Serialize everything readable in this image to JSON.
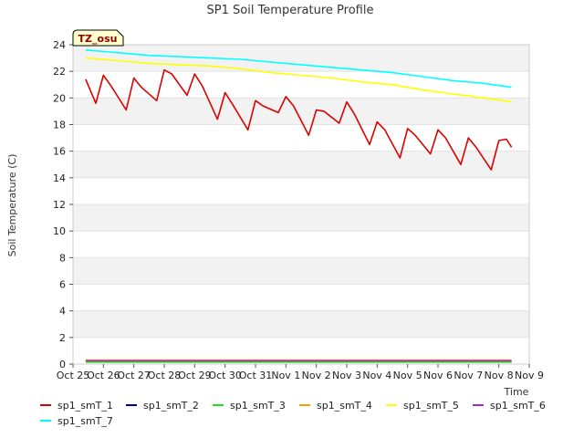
{
  "chart_data": {
    "type": "line",
    "title": "SP1 Soil Temperature Profile",
    "xlabel": "Time",
    "ylabel": "Soil Temperature (C)",
    "badge": "TZ_osu",
    "ylim": [
      0,
      24
    ],
    "yticks": [
      0,
      2,
      4,
      6,
      8,
      10,
      12,
      14,
      16,
      18,
      20,
      22,
      24
    ],
    "xlim": [
      "Oct 25",
      "Nov 9"
    ],
    "xticks": [
      "Oct 25",
      "Oct 26",
      "Oct 27",
      "Oct 28",
      "Oct 29",
      "Oct 30",
      "Oct 31",
      "Nov 1",
      "Nov 2",
      "Nov 3",
      "Nov 4",
      "Nov 5",
      "Nov 6",
      "Nov 7",
      "Nov 8",
      "Nov 9"
    ],
    "grid": "horizontal bands",
    "legend_position": "bottom",
    "series": [
      {
        "name": "sp1_smT_1",
        "color": "#dd0000",
        "x": [
          "Oct 25 10:00",
          "Oct 25 18:00",
          "Oct 26 00:00",
          "Oct 26 06:00",
          "Oct 26 18:00",
          "Oct 27 00:00",
          "Oct 27 06:00",
          "Oct 27 18:00",
          "Oct 28 00:00",
          "Oct 28 06:00",
          "Oct 28 18:00",
          "Oct 29 00:00",
          "Oct 29 06:00",
          "Oct 29 18:00",
          "Oct 30 00:00",
          "Oct 30 06:00",
          "Oct 30 18:00",
          "Oct 31 00:00",
          "Oct 31 06:00",
          "Oct 31 18:00",
          "Nov 1 00:00",
          "Nov 1 06:00",
          "Nov 1 18:00",
          "Nov 2 00:00",
          "Nov 2 06:00",
          "Nov 2 18:00",
          "Nov 3 00:00",
          "Nov 3 06:00",
          "Nov 3 18:00",
          "Nov 4 00:00",
          "Nov 4 06:00",
          "Nov 4 18:00",
          "Nov 5 00:00",
          "Nov 5 06:00",
          "Nov 5 18:00",
          "Nov 6 00:00",
          "Nov 6 06:00",
          "Nov 6 18:00",
          "Nov 7 00:00",
          "Nov 7 06:00",
          "Nov 7 18:00",
          "Nov 8 00:00",
          "Nov 8 06:00",
          "Nov 8 10:00"
        ],
        "y": [
          21.4,
          19.6,
          21.7,
          20.9,
          19.1,
          21.5,
          20.8,
          19.8,
          22.1,
          21.8,
          20.2,
          21.8,
          20.9,
          18.4,
          20.4,
          19.5,
          17.6,
          19.8,
          19.4,
          18.9,
          20.1,
          19.4,
          17.2,
          19.1,
          19.0,
          18.1,
          19.7,
          18.8,
          16.5,
          18.2,
          17.6,
          15.5,
          17.7,
          17.2,
          15.8,
          17.6,
          17.0,
          15.0,
          17.0,
          16.3,
          14.6,
          16.8,
          16.9,
          16.3
        ]
      },
      {
        "name": "sp1_smT_2",
        "color": "#00008b",
        "x": [
          "Oct 25 10:00",
          "Nov 8 10:00"
        ],
        "y": [
          0.2,
          0.2
        ]
      },
      {
        "name": "sp1_smT_3",
        "color": "#22dd22",
        "x": [
          "Oct 25 10:00",
          "Nov 8 10:00"
        ],
        "y": [
          0.15,
          0.15
        ]
      },
      {
        "name": "sp1_smT_4",
        "color": "#ff9900",
        "x": [
          "Oct 25 10:00",
          "Nov 8 10:00"
        ],
        "y": [
          0.3,
          0.3
        ]
      },
      {
        "name": "sp1_smT_5",
        "color": "#ffff00",
        "x": [
          "Oct 25 10:00",
          "Oct 26 12:00",
          "Oct 27 12:00",
          "Oct 28 12:00",
          "Oct 29 12:00",
          "Oct 30 12:00",
          "Oct 31 12:00",
          "Nov 1 12:00",
          "Nov 2 12:00",
          "Nov 3 12:00",
          "Nov 4 12:00",
          "Nov 5 12:00",
          "Nov 6 12:00",
          "Nov 7 12:00",
          "Nov 8 10:00"
        ],
        "y": [
          23.0,
          22.8,
          22.6,
          22.5,
          22.4,
          22.2,
          21.9,
          21.7,
          21.5,
          21.2,
          21.0,
          20.6,
          20.3,
          20.0,
          19.7
        ]
      },
      {
        "name": "sp1_smT_6",
        "color": "#9932cc",
        "x": [
          "Oct 25 10:00",
          "Nov 8 10:00"
        ],
        "y": [
          0.25,
          0.25
        ]
      },
      {
        "name": "sp1_smT_7",
        "color": "#00ffff",
        "x": [
          "Oct 25 10:00",
          "Oct 26 12:00",
          "Oct 27 12:00",
          "Oct 28 12:00",
          "Oct 29 12:00",
          "Oct 30 12:00",
          "Oct 31 12:00",
          "Nov 1 12:00",
          "Nov 2 12:00",
          "Nov 3 12:00",
          "Nov 4 12:00",
          "Nov 5 12:00",
          "Nov 6 12:00",
          "Nov 7 12:00",
          "Nov 8 10:00"
        ],
        "y": [
          23.6,
          23.4,
          23.2,
          23.1,
          23.0,
          22.9,
          22.7,
          22.5,
          22.3,
          22.1,
          21.9,
          21.6,
          21.3,
          21.1,
          20.8
        ]
      }
    ]
  }
}
